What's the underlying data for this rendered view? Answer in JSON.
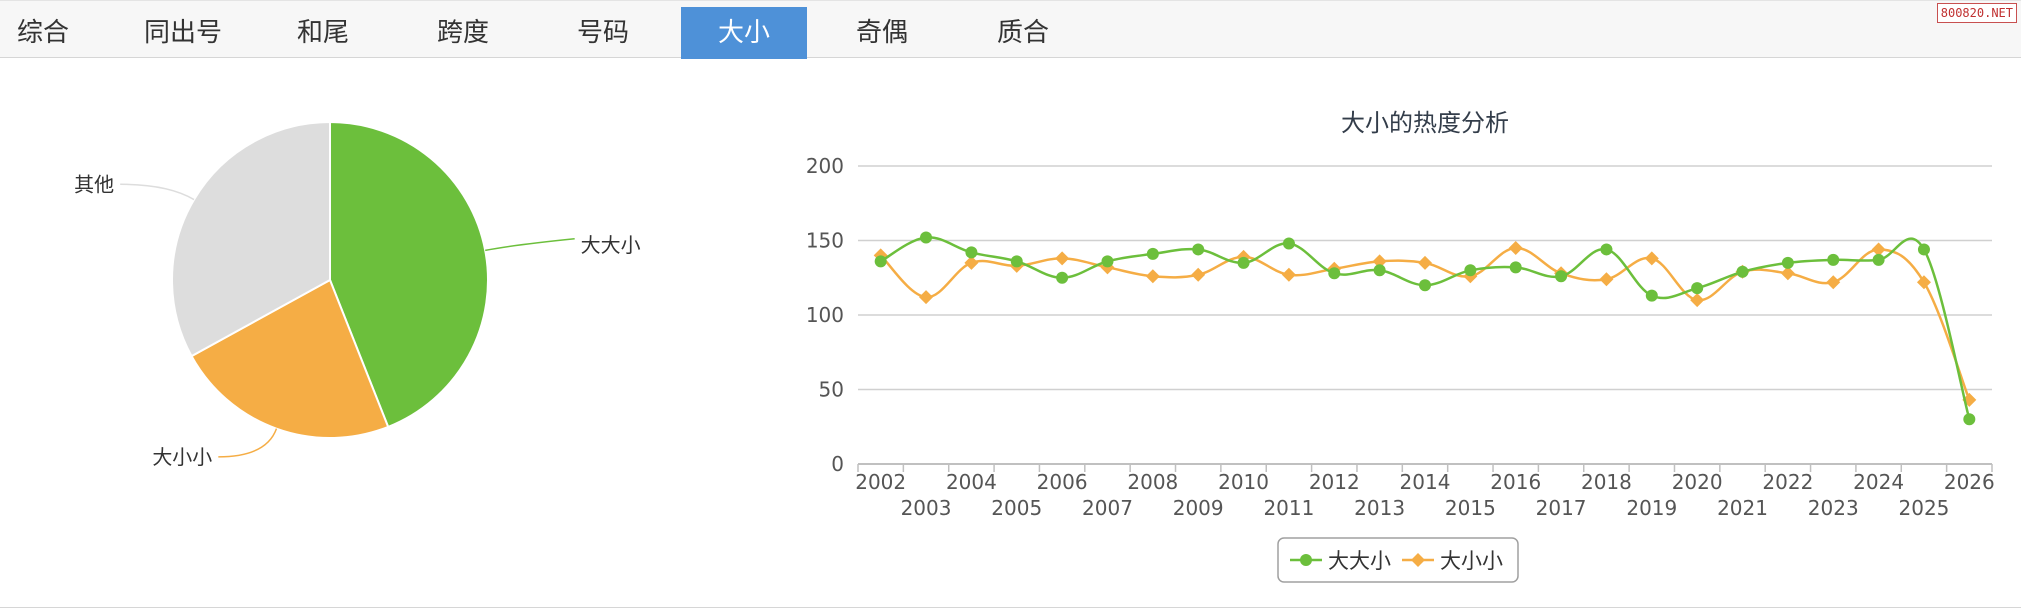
{
  "tabs": [
    {
      "label": "综合",
      "active": false
    },
    {
      "label": "同出号",
      "active": false
    },
    {
      "label": "和尾",
      "active": false
    },
    {
      "label": "跨度",
      "active": false
    },
    {
      "label": "号码",
      "active": false
    },
    {
      "label": "大小",
      "active": true
    },
    {
      "label": "奇偶",
      "active": false
    },
    {
      "label": "质合",
      "active": false
    }
  ],
  "watermark": "800820.NET",
  "colors": {
    "green": "#6cbf3c",
    "orange": "#f5ad45",
    "gray": "#dddddd",
    "accent": "#4e91d8",
    "grid": "#d0d0d0"
  },
  "chart_data": [
    {
      "type": "pie",
      "title": "",
      "slices": [
        {
          "label": "大大小",
          "value": 44,
          "color": "#6cbf3c"
        },
        {
          "label": "大小小",
          "value": 23,
          "color": "#f5ad45"
        },
        {
          "label": "其他",
          "value": 33,
          "color": "#dddddd"
        }
      ]
    },
    {
      "type": "line",
      "title": "大小的热度分析",
      "xlabel": "",
      "ylabel": "",
      "ylim": [
        0,
        200
      ],
      "yticks": [
        0,
        50,
        100,
        150,
        200
      ],
      "grid": true,
      "legend": "bottom-center",
      "x": [
        "2002",
        "2003",
        "2004",
        "2005",
        "2006",
        "2007",
        "2008",
        "2009",
        "2010",
        "2011",
        "2012",
        "2013",
        "2014",
        "2015",
        "2016",
        "2017",
        "2018",
        "2019",
        "2020",
        "2021",
        "2022",
        "2023",
        "2024",
        "2025",
        "2026"
      ],
      "series": [
        {
          "name": "大大小",
          "color": "#6cbf3c",
          "marker": "circle",
          "values": [
            136,
            152,
            142,
            136,
            125,
            136,
            141,
            144,
            135,
            148,
            128,
            130,
            120,
            130,
            132,
            126,
            144,
            113,
            118,
            129,
            135,
            137,
            137,
            144,
            30
          ]
        },
        {
          "name": "大小小",
          "color": "#f5ad45",
          "marker": "diamond",
          "values": [
            140,
            112,
            135,
            133,
            138,
            132,
            126,
            127,
            139,
            127,
            131,
            136,
            135,
            126,
            145,
            128,
            124,
            138,
            110,
            129,
            128,
            122,
            144,
            122,
            43
          ]
        }
      ]
    }
  ]
}
